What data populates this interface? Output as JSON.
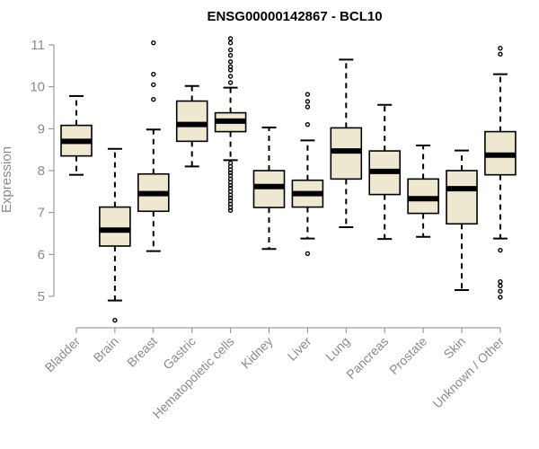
{
  "chart_data": {
    "type": "boxplot",
    "title": "ENSG00000142867 - BCL10",
    "ylabel": "Expression",
    "xlabel": "",
    "ylim": [
      4.3,
      11.3
    ],
    "y_ticks": [
      5,
      6,
      7,
      8,
      9,
      10,
      11
    ],
    "grid": false,
    "legend": "none",
    "colors": {
      "box_fill": "#efe8d0",
      "box_stroke": "#000000",
      "axis": "#8a8a8a",
      "title": "#000000"
    },
    "categories": [
      "Bladder",
      "Brain",
      "Breast",
      "Gastric",
      "Hematopoietic cells",
      "Kidney",
      "Liver",
      "Lung",
      "Pancreas",
      "Prostate",
      "Skin",
      "Unknown / Other"
    ],
    "boxes": [
      {
        "category": "Bladder",
        "whisker_low": 7.9,
        "q1": 8.35,
        "median": 8.7,
        "q3": 9.08,
        "whisker_high": 9.78,
        "outliers": []
      },
      {
        "category": "Brain",
        "whisker_low": 4.9,
        "q1": 6.2,
        "median": 6.58,
        "q3": 7.13,
        "whisker_high": 8.52,
        "outliers": [
          4.43
        ]
      },
      {
        "category": "Breast",
        "whisker_low": 6.08,
        "q1": 7.03,
        "median": 7.45,
        "q3": 7.92,
        "whisker_high": 8.98,
        "outliers": [
          9.7,
          10.05,
          10.3,
          11.05
        ]
      },
      {
        "category": "Gastric",
        "whisker_low": 8.1,
        "q1": 8.7,
        "median": 9.1,
        "q3": 9.66,
        "whisker_high": 10.02,
        "outliers": []
      },
      {
        "category": "Hematopoietic cells",
        "whisker_low": 8.25,
        "q1": 8.93,
        "median": 9.18,
        "q3": 9.38,
        "whisker_high": 9.98,
        "outliers": [
          7.05,
          7.12,
          7.2,
          7.28,
          7.35,
          7.42,
          7.5,
          7.58,
          7.65,
          7.72,
          7.8,
          7.88,
          7.95,
          8.02,
          8.1,
          8.18,
          10.1,
          10.25,
          10.4,
          10.48,
          10.6,
          10.75,
          10.88,
          11.05,
          11.15
        ]
      },
      {
        "category": "Kidney",
        "whisker_low": 6.13,
        "q1": 7.12,
        "median": 7.62,
        "q3": 8.0,
        "whisker_high": 9.03,
        "outliers": []
      },
      {
        "category": "Liver",
        "whisker_low": 6.38,
        "q1": 7.13,
        "median": 7.45,
        "q3": 7.77,
        "whisker_high": 8.72,
        "outliers": [
          6.02,
          9.1,
          9.52,
          9.65,
          9.82
        ]
      },
      {
        "category": "Lung",
        "whisker_low": 6.65,
        "q1": 7.8,
        "median": 8.47,
        "q3": 9.02,
        "whisker_high": 10.65,
        "outliers": []
      },
      {
        "category": "Pancreas",
        "whisker_low": 6.37,
        "q1": 7.43,
        "median": 7.98,
        "q3": 8.47,
        "whisker_high": 9.57,
        "outliers": []
      },
      {
        "category": "Prostate",
        "whisker_low": 6.42,
        "q1": 6.98,
        "median": 7.33,
        "q3": 7.8,
        "whisker_high": 8.6,
        "outliers": []
      },
      {
        "category": "Skin",
        "whisker_low": 5.15,
        "q1": 6.73,
        "median": 7.57,
        "q3": 8.0,
        "whisker_high": 8.48,
        "outliers": []
      },
      {
        "category": "Unknown / Other",
        "whisker_low": 6.38,
        "q1": 7.9,
        "median": 8.37,
        "q3": 8.93,
        "whisker_high": 10.3,
        "outliers": [
          4.98,
          5.12,
          5.25,
          5.35,
          6.1,
          10.78,
          10.92
        ]
      }
    ]
  }
}
